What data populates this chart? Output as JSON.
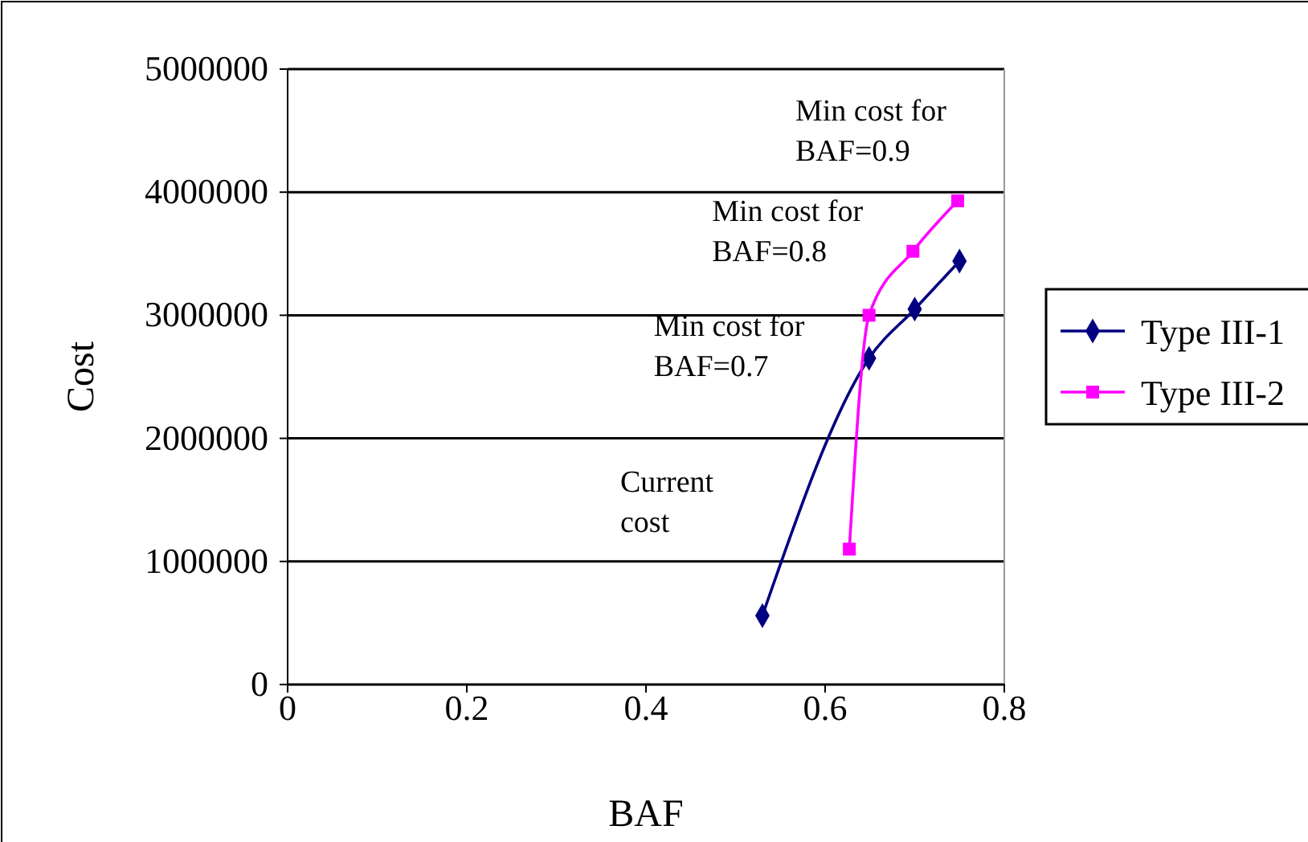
{
  "chart_data": {
    "type": "line",
    "xlabel": "BAF",
    "ylabel": "Cost",
    "xlim": [
      0,
      0.8
    ],
    "xticks": [
      0,
      0.2,
      0.4,
      0.6,
      0.8
    ],
    "ylim": [
      0,
      5000000
    ],
    "yticks": [
      0,
      1000000,
      2000000,
      3000000,
      4000000,
      5000000
    ],
    "grid": "y",
    "legend": "right",
    "line_style": "solid",
    "series": [
      {
        "name": "Type III-1",
        "color": "#000080",
        "marker": "diamond",
        "x": [
          0.53,
          0.649,
          0.7,
          0.75
        ],
        "values": [
          560000,
          2650000,
          3050000,
          3440000
        ]
      },
      {
        "name": "Type III-2",
        "color": "#ff00ff",
        "marker": "square",
        "x": [
          0.627,
          0.649,
          0.698,
          0.748
        ],
        "values": [
          1100000,
          3000000,
          3520000,
          3930000
        ]
      }
    ],
    "annotations": [
      {
        "text": "Min cost for\nBAF=0.9",
        "x": 0.748,
        "y": 3930000
      },
      {
        "text": "Min cost for\nBAF=0.8",
        "x": 0.698,
        "y": 3520000
      },
      {
        "text": "Min cost for\nBAF=0.7",
        "x": 0.649,
        "y": 2650000
      },
      "Current\ncost"
    ]
  }
}
